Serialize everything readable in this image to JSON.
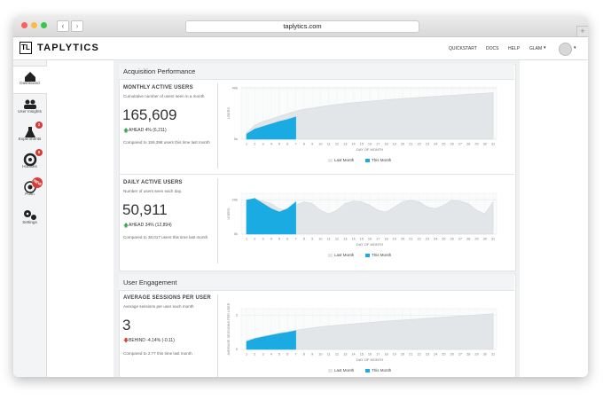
{
  "browser": {
    "url": "taplytics.com"
  },
  "nav": {
    "logo": "TAPLYTICS",
    "links": [
      "QUICKSTART",
      "DOCS",
      "HELP"
    ],
    "user": "GLAM"
  },
  "sidebar": [
    {
      "label": "Dashboard"
    },
    {
      "label": "User Insights"
    },
    {
      "label": "Experiments",
      "badge": 2
    },
    {
      "label": "Hotfixes",
      "badge": 0
    },
    {
      "label": "Push",
      "badge": "NEW"
    },
    {
      "label": "Settings"
    }
  ],
  "cards": [
    {
      "title": "Acquisition Performance",
      "metrics": [
        {
          "title": "MONTHLY ACTIVE USERS",
          "description": "Cumulative number of users seen in a month",
          "value": "165,609",
          "change": "AHEAD 4% (6,211)",
          "comparison": "Compared to 159,398 users this time last month",
          "chart_data": {
            "type": "area",
            "x": [
              1,
              2,
              3,
              4,
              5,
              6,
              7,
              8,
              9,
              10,
              11,
              12,
              13,
              14,
              15,
              16,
              17,
              18,
              19,
              20,
              21,
              22,
              23,
              24,
              25,
              26,
              27,
              28,
              29,
              30,
              31
            ],
            "xlabel": "DAY OF MONTH",
            "ylabel": "USERS",
            "ylim": [
              0,
              41000
            ],
            "yticks": [
              {
                "value": 0,
                "label": "0k"
              },
              {
                "value": 40000,
                "label": "40k"
              }
            ],
            "series": [
              {
                "name": "Last Month",
                "color": "#e3e6e9",
                "values": [
                  5000,
                  11000,
                  14000,
                  16000,
                  18000,
                  20000,
                  22000,
                  23500,
                  24500,
                  25500,
                  26500,
                  27200,
                  28000,
                  28600,
                  29200,
                  29800,
                  30400,
                  31000,
                  31400,
                  31900,
                  32300,
                  32800,
                  33200,
                  33600,
                  34000,
                  34400,
                  34800,
                  35200,
                  35600,
                  36000,
                  36500
                ]
              },
              {
                "name": "This Month",
                "color": "#1aabe3",
                "values": [
                  4000,
                  8000,
                  10000,
                  12000,
                  14000,
                  15500,
                  17500,
                  null,
                  null,
                  null,
                  null,
                  null,
                  null,
                  null,
                  null,
                  null,
                  null,
                  null,
                  null,
                  null,
                  null,
                  null,
                  null,
                  null,
                  null,
                  null,
                  null,
                  null,
                  null,
                  null,
                  null
                ]
              }
            ]
          }
        },
        {
          "title": "DAILY ACTIVE USERS",
          "description": "Number of users seen each day.",
          "value": "50,911",
          "change": "AHEAD 34% (12,894)",
          "comparison": "Compared to 38,017 users this time last month",
          "chart_data": {
            "type": "area",
            "x": [
              1,
              2,
              3,
              4,
              5,
              6,
              7,
              8,
              9,
              10,
              11,
              12,
              13,
              14,
              15,
              16,
              17,
              18,
              19,
              20,
              21,
              22,
              23,
              24,
              25,
              26,
              27,
              28,
              29,
              30,
              31
            ],
            "xlabel": "DAY OF MONTH",
            "ylabel": "USERS",
            "ylim": [
              0,
              24000
            ],
            "yticks": [
              {
                "value": 0,
                "label": "0k"
              },
              {
                "value": 20000,
                "label": "20k"
              }
            ],
            "series": [
              {
                "name": "Last Month",
                "color": "#e3e6e9",
                "values": [
                  19000,
                  20000,
                  19500,
                  18000,
                  15000,
                  14000,
                  17000,
                  19000,
                  18000,
                  14000,
                  12000,
                  14000,
                  18000,
                  19500,
                  19000,
                  17000,
                  14000,
                  13000,
                  16000,
                  19000,
                  20000,
                  19000,
                  16000,
                  15000,
                  17000,
                  20000,
                  19500,
                  18000,
                  14000,
                  12000,
                  19000
                ]
              },
              {
                "name": "This Month",
                "color": "#1aabe3",
                "values": [
                  20000,
                  21000,
                  18000,
                  15000,
                  13000,
                  15000,
                  19000,
                  null,
                  null,
                  null,
                  null,
                  null,
                  null,
                  null,
                  null,
                  null,
                  null,
                  null,
                  null,
                  null,
                  null,
                  null,
                  null,
                  null,
                  null,
                  null,
                  null,
                  null,
                  null,
                  null,
                  null
                ]
              }
            ]
          }
        }
      ]
    },
    {
      "title": "User Engagement",
      "metrics": [
        {
          "title": "AVERAGE SESSIONS PER USER",
          "description": "Average sessions per user each month",
          "value": "3",
          "change": "BEHIND -4.14% (-0.11)",
          "comparison": "Compared to 2.77 this time last month",
          "chart_data": {
            "type": "area",
            "x": [
              1,
              2,
              3,
              4,
              5,
              6,
              7,
              8,
              9,
              10,
              11,
              12,
              13,
              14,
              15,
              16,
              17,
              18,
              19,
              20,
              21,
              22,
              23,
              24,
              25,
              26,
              27,
              28,
              29,
              30,
              31
            ],
            "xlabel": "DAY OF MONTH",
            "ylabel": "AVERAGE SESSIONS PER USER",
            "ylim": [
              0,
              3.6
            ],
            "yticks": [
              0,
              3
            ],
            "series": [
              {
                "name": "Last Month",
                "color": "#e3e6e9",
                "values": [
                  0.8,
                  1.0,
                  1.15,
                  1.3,
                  1.45,
                  1.55,
                  1.7,
                  1.8,
                  1.9,
                  2.0,
                  2.07,
                  2.14,
                  2.2,
                  2.26,
                  2.32,
                  2.38,
                  2.44,
                  2.5,
                  2.55,
                  2.6,
                  2.65,
                  2.7,
                  2.75,
                  2.8,
                  2.85,
                  2.9,
                  2.95,
                  3.0,
                  3.05,
                  3.1,
                  3.15
                ]
              },
              {
                "name": "This Month",
                "color": "#1aabe3",
                "values": [
                  0.7,
                  0.95,
                  1.1,
                  1.25,
                  1.4,
                  1.5,
                  1.65,
                  null,
                  null,
                  null,
                  null,
                  null,
                  null,
                  null,
                  null,
                  null,
                  null,
                  null,
                  null,
                  null,
                  null,
                  null,
                  null,
                  null,
                  null,
                  null,
                  null,
                  null,
                  null,
                  null,
                  null
                ]
              }
            ]
          }
        }
      ]
    }
  ]
}
